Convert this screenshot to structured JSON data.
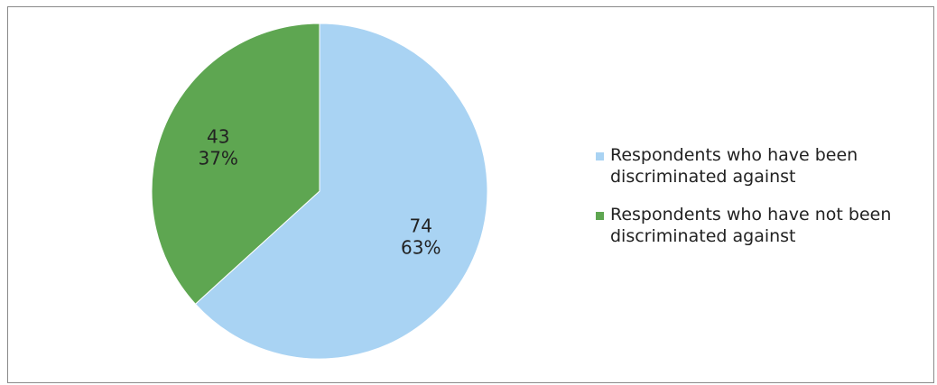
{
  "chart_data": {
    "type": "pie",
    "title": "",
    "slices": [
      {
        "label": "Respondents who have been discriminated against",
        "value": 74,
        "percent": "63%",
        "color": "#a9d3f3"
      },
      {
        "label": "Respondents who have not been discriminated against",
        "value": 43,
        "percent": "37%",
        "color": "#5ea651"
      }
    ],
    "legend_position": "right"
  },
  "legend": {
    "items": [
      {
        "label": "Respondents who have been discriminated against",
        "color": "#a9d3f3"
      },
      {
        "label": "Respondents who have not been discriminated against",
        "color": "#5ea651"
      }
    ]
  }
}
